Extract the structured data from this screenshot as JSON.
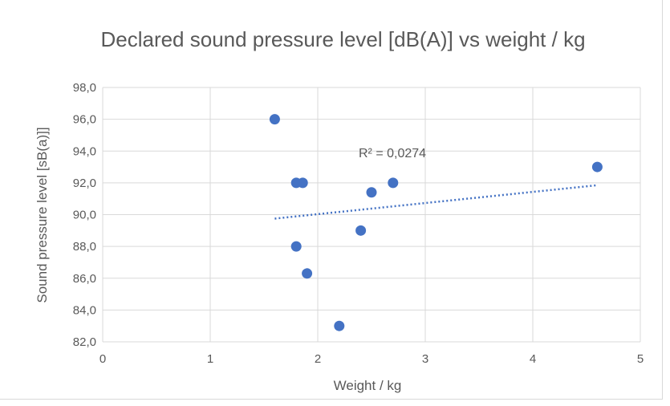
{
  "chart_data": {
    "type": "scatter",
    "title": "Declared sound pressure level [dB(A)] vs weight / kg",
    "xlabel": "Weight / kg",
    "ylabel": "Sound pressure level [sB(a)]]",
    "xlim": [
      0,
      5
    ],
    "ylim": [
      82,
      98
    ],
    "x_ticks": [
      0,
      1,
      2,
      3,
      4,
      5
    ],
    "x_tick_labels": [
      "0",
      "1",
      "2",
      "3",
      "4",
      "5"
    ],
    "y_ticks": [
      82,
      84,
      86,
      88,
      90,
      92,
      94,
      96,
      98
    ],
    "y_tick_labels": [
      "82,0",
      "84,0",
      "86,0",
      "88,0",
      "90,0",
      "92,0",
      "94,0",
      "96,0",
      "98,0"
    ],
    "grid": true,
    "legend": "none",
    "series": [
      {
        "points": [
          {
            "x": 1.6,
            "y": 96.0
          },
          {
            "x": 1.8,
            "y": 92.0
          },
          {
            "x": 1.86,
            "y": 92.0
          },
          {
            "x": 1.8,
            "y": 88.0
          },
          {
            "x": 1.9,
            "y": 86.3
          },
          {
            "x": 2.2,
            "y": 83.0
          },
          {
            "x": 2.4,
            "y": 89.0
          },
          {
            "x": 2.5,
            "y": 91.4
          },
          {
            "x": 2.7,
            "y": 92.0
          },
          {
            "x": 4.6,
            "y": 93.0
          }
        ],
        "color": "#4472c4"
      }
    ],
    "trendline": {
      "type": "linear",
      "start": {
        "x": 1.6,
        "y": 89.75
      },
      "end": {
        "x": 4.6,
        "y": 91.85
      },
      "color": "#4472c4",
      "style": "dotted",
      "label": "R² = 0,0274"
    },
    "colors": {
      "grid": "#d9d9d9",
      "text": "#595959",
      "marker": "#4472c4"
    }
  }
}
